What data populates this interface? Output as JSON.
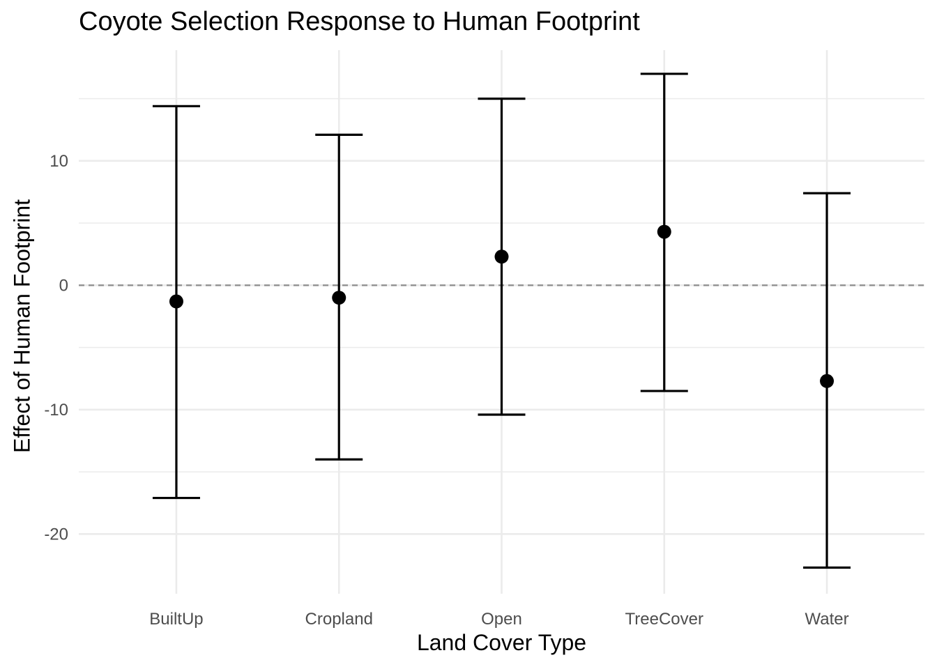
{
  "chart_data": {
    "type": "errorbar",
    "title": "Coyote Selection Response to Human Footprint",
    "xlabel": "Land Cover Type",
    "ylabel": "Effect of Human Footprint",
    "categories": [
      "BuiltUp",
      "Cropland",
      "Open",
      "TreeCover",
      "Water"
    ],
    "estimates": [
      -1.3,
      -1.0,
      2.3,
      4.3,
      -7.7
    ],
    "lower": [
      -17.1,
      -14.0,
      -10.4,
      -8.5,
      -22.7
    ],
    "upper": [
      14.4,
      12.1,
      15.0,
      17.0,
      7.4
    ],
    "ylim": [
      -24.8,
      18.9
    ],
    "yticks": [
      -20,
      -10,
      0,
      10
    ],
    "ytick_labels": [
      "-20",
      "-10",
      "0",
      "10"
    ],
    "reference_line": 0,
    "grid": true,
    "colors": {
      "marks": "#000000",
      "grid": "#ebebeb",
      "reference": "#8c8c8c",
      "tick_text": "#4d4d4d"
    }
  }
}
